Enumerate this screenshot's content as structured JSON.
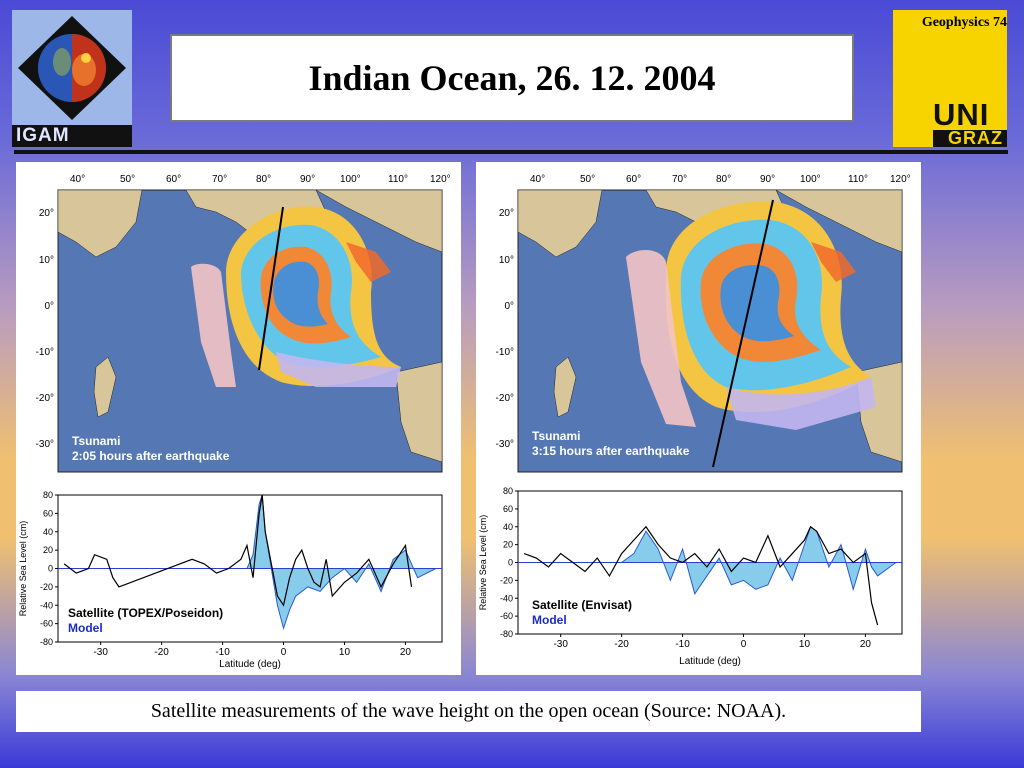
{
  "header": {
    "title": "Indian Ocean, 26. 12. 2004",
    "left_logo_text": "IGAM",
    "right_logo_label": "Geophysics 74",
    "right_logo_uni": "UNI",
    "right_logo_graz": "GRAZ"
  },
  "caption": "Satellite measurements of the wave height on the open ocean (Source: NOAA).",
  "map_lon_ticks": [
    "40°",
    "50°",
    "60°",
    "70°",
    "80°",
    "90°",
    "100°",
    "110°",
    "120°"
  ],
  "map_lat_ticks": [
    "20°",
    "10°",
    "0°",
    "-10°",
    "-20°",
    "-30°"
  ],
  "left_panel": {
    "map_label_1": "Tsunami",
    "map_label_2": "2:05 hours after earthquake",
    "legend_1": "Satellite (TOPEX/Poseidon)",
    "legend_2": "Model"
  },
  "right_panel": {
    "map_label_1": "Tsunami",
    "map_label_2": "3:15 hours after earthquake",
    "legend_1": "Satellite (Envisat)",
    "legend_2": "Model"
  },
  "chart_data": [
    {
      "type": "line",
      "xlabel": "Latitude (deg)",
      "ylabel": "Relative Sea Level (cm)",
      "xlim": [
        -37,
        26
      ],
      "ylim": [
        -80,
        80
      ],
      "x_ticks": [
        -30,
        -20,
        -10,
        0,
        10,
        20
      ],
      "y_ticks": [
        80,
        60,
        40,
        20,
        0,
        -20,
        -40,
        -60,
        -80
      ],
      "series": [
        {
          "name": "Satellite (TOPEX/Poseidon)",
          "color": "#000000",
          "x": [
            -36,
            -34,
            -32,
            -31,
            -29,
            -28,
            -27,
            -15,
            -13,
            -11,
            -9,
            -7,
            -6,
            -5,
            -4,
            -3.5,
            -3,
            -2,
            -1,
            0,
            1,
            2,
            3,
            4,
            5,
            6,
            7,
            8,
            10,
            12,
            14,
            16,
            18,
            20,
            21
          ],
          "y": [
            5,
            -5,
            0,
            15,
            10,
            -10,
            -20,
            10,
            5,
            -5,
            0,
            10,
            25,
            -10,
            60,
            80,
            40,
            5,
            -30,
            -40,
            -10,
            10,
            20,
            0,
            -15,
            -20,
            10,
            -30,
            -15,
            -5,
            10,
            -20,
            5,
            25,
            -20
          ]
        },
        {
          "name": "Model",
          "color": "#87cdeb",
          "x": [
            -36,
            -20,
            -10,
            -6,
            -5,
            -4,
            -3.5,
            -3,
            -2,
            -1,
            0,
            1,
            2,
            4,
            6,
            8,
            10,
            12,
            14,
            16,
            18,
            20,
            22,
            25
          ],
          "y": [
            0,
            0,
            0,
            0,
            15,
            70,
            80,
            40,
            0,
            -40,
            -65,
            -45,
            -30,
            -20,
            -25,
            -10,
            0,
            -15,
            5,
            -25,
            10,
            20,
            -10,
            0
          ]
        }
      ]
    },
    {
      "type": "line",
      "xlabel": "Latitude (deg)",
      "ylabel": "Relative Sea Level (cm)",
      "xlim": [
        -37,
        26
      ],
      "ylim": [
        -80,
        80
      ],
      "x_ticks": [
        -30,
        -20,
        -10,
        0,
        10,
        20
      ],
      "y_ticks": [
        80,
        60,
        40,
        20,
        0,
        -20,
        -40,
        -60,
        -80
      ],
      "series": [
        {
          "name": "Satellite (Envisat)",
          "color": "#000000",
          "x": [
            -36,
            -34,
            -32,
            -30,
            -28,
            -26,
            -24,
            -22,
            -20,
            -18,
            -16,
            -14,
            -12,
            -10,
            -8,
            -6,
            -4,
            -2,
            0,
            2,
            4,
            6,
            8,
            10,
            11,
            12,
            14,
            16,
            18,
            20,
            21,
            22
          ],
          "y": [
            10,
            5,
            -5,
            10,
            0,
            -10,
            5,
            -15,
            10,
            25,
            40,
            20,
            5,
            0,
            10,
            -5,
            15,
            -10,
            5,
            0,
            30,
            -5,
            10,
            25,
            40,
            35,
            10,
            15,
            0,
            10,
            -45,
            -70
          ]
        },
        {
          "name": "Model",
          "color": "#87cdeb",
          "x": [
            -36,
            -20,
            -18,
            -16,
            -14,
            -12,
            -10,
            -8,
            -6,
            -4,
            -2,
            0,
            2,
            4,
            6,
            8,
            10,
            11,
            12,
            14,
            16,
            18,
            20,
            21,
            22,
            25
          ],
          "y": [
            0,
            0,
            10,
            35,
            15,
            -20,
            15,
            -35,
            -15,
            5,
            -25,
            -20,
            -30,
            -25,
            5,
            -20,
            20,
            40,
            35,
            -5,
            20,
            -30,
            15,
            -5,
            -15,
            0
          ]
        }
      ]
    }
  ]
}
